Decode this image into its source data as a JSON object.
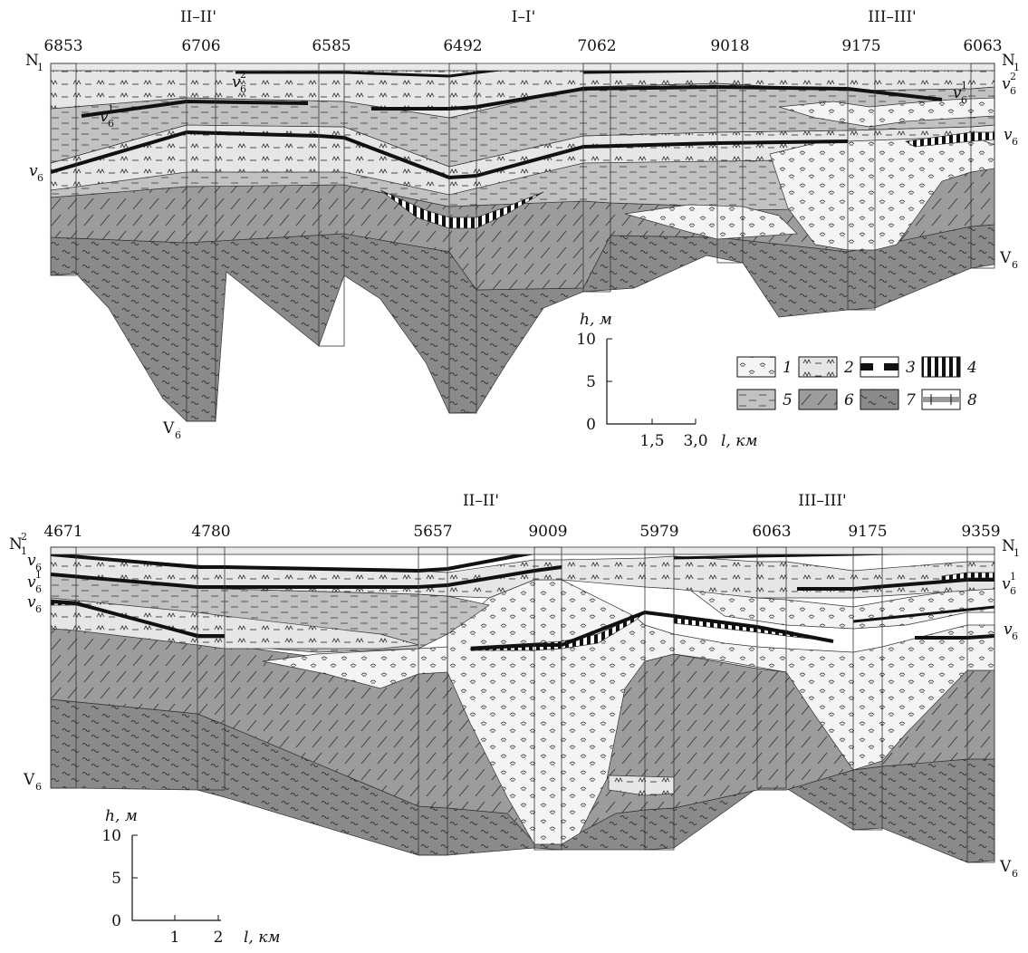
{
  "top_section": {
    "profile_labels": [
      "II–II'",
      "I–I'",
      "III–III'"
    ],
    "wells": [
      "6853",
      "6706",
      "6585",
      "6492",
      "7062",
      "9018",
      "9175",
      "6063"
    ],
    "left_labels": {
      "n1": "N",
      "n1_sub": "1",
      "v6": "v",
      "v6_sub": "6"
    },
    "right_labels": {
      "n1": "N",
      "n1_sub": "1",
      "v6_2": "v",
      "v6_2_sub": "6",
      "v6_2_sup": "2",
      "v6": "v",
      "v6_sub": "6",
      "V6": "V",
      "V6_sub": "6"
    },
    "inner_labels": {
      "v6_2": "v",
      "v6_2_sub": "6",
      "v6_2_sup": "2",
      "v6_1": "v",
      "v6_1_sub": "6",
      "v6_1_sup": "1"
    },
    "base_label": {
      "text": "V",
      "sub": "6"
    }
  },
  "scale_top": {
    "h_label": "h, м",
    "l_label": "l, км",
    "y_ticks": [
      "10",
      "5",
      "0"
    ],
    "x_ticks": [
      "1,5",
      "3,0"
    ]
  },
  "legend": [
    {
      "num": "1",
      "pattern": "oolitic"
    },
    {
      "num": "2",
      "pattern": "grass"
    },
    {
      "num": "3",
      "pattern": "dashed-black"
    },
    {
      "num": "4",
      "pattern": "vertical-bars"
    },
    {
      "num": "5",
      "pattern": "dashes"
    },
    {
      "num": "6",
      "pattern": "diagonal"
    },
    {
      "num": "7",
      "pattern": "waves"
    },
    {
      "num": "8",
      "pattern": "well-marker"
    }
  ],
  "bottom_section": {
    "profile_labels": [
      "II–II'",
      "III–III'"
    ],
    "wells": [
      "4671",
      "4780",
      "5657",
      "9009",
      "5979",
      "6063",
      "9175",
      "9359"
    ],
    "left_labels": {
      "n1": "N",
      "n1_sub": "1",
      "n1_sup": "2",
      "v6_2": "v",
      "v6_2_sub": "6",
      "v6_1": "v",
      "v6_1_sub": "6",
      "v6_1_sup": "1",
      "v6": "v",
      "v6_sub": "6",
      "V6": "V",
      "V6_sub": "6"
    },
    "right_labels": {
      "n1": "N",
      "n1_sub": "1",
      "v6_1": "v",
      "v6_1_sub": "6",
      "v6_1_sup": "1",
      "v6": "v",
      "v6_sub": "6",
      "V6": "V",
      "V6_sub": "6"
    }
  },
  "scale_bottom": {
    "h_label": "h, м",
    "l_label": "l, км",
    "y_ticks": [
      "10",
      "5",
      "0"
    ],
    "x_ticks": [
      "1",
      "2"
    ]
  },
  "colors": {
    "dark": "#8c8c8c",
    "mid": "#bdbdbd",
    "light": "#e2e2e2",
    "white": "#f7f7f7",
    "black": "#111111"
  }
}
